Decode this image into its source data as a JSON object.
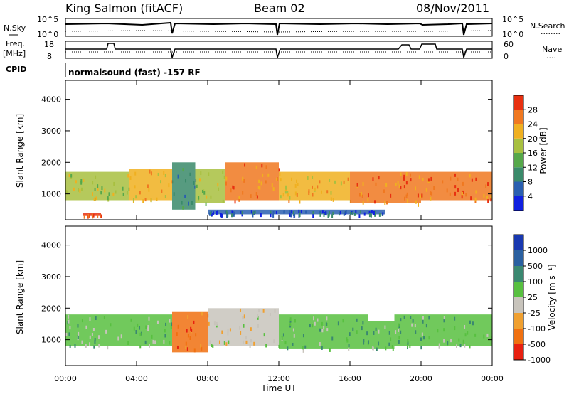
{
  "header": {
    "station": "King Salmon (fitACF)",
    "beam": "Beam 02",
    "date": "08/Nov/2011"
  },
  "strip_labels": {
    "nsky": "N.Sky",
    "nsearch": "N.Search",
    "nsearch_dots": "........",
    "freq": "Freq.",
    "freq_unit": "[MHz]",
    "nave": "Nave",
    "nave_dots": "....",
    "cpid": "CPID",
    "cpid_text": "normalsound (fast) -157 RF",
    "noise_ticks_left": [
      "10^5",
      "10^0"
    ],
    "noise_ticks_right": [
      "10^5",
      "10^0"
    ],
    "freq_ticks": [
      "18",
      "8"
    ],
    "nave_ticks": [
      "60",
      "0"
    ]
  },
  "axes": {
    "xlabel": "Time UT",
    "ylabel": "Slant Range [km]",
    "xticks": [
      "00:00",
      "04:00",
      "08:00",
      "12:00",
      "16:00",
      "20:00",
      "00:00"
    ],
    "yticks": [
      "1000",
      "2000",
      "3000",
      "4000"
    ]
  },
  "colorbars": {
    "power": {
      "label": "Power [dB]",
      "ticks": [
        "4",
        "8",
        "12",
        "16",
        "20",
        "24",
        "28"
      ],
      "colors": [
        "#1020e0",
        "#2a5fb0",
        "#3a8a6a",
        "#56a84a",
        "#a8c040",
        "#f0b020",
        "#f07820",
        "#e83010"
      ]
    },
    "velocity": {
      "label": "Velocity [m s⁻¹]",
      "ticks": [
        "1000",
        "500",
        "100",
        "25",
        "-25",
        "-100",
        "-500",
        "-1000"
      ],
      "colors": [
        "#1838b0",
        "#2a60a0",
        "#3a8870",
        "#58c040",
        "#c8c4bc",
        "#f0a030",
        "#f07010",
        "#e82010"
      ]
    }
  },
  "chart_data": [
    {
      "type": "heatmap",
      "title": "Power [dB]",
      "xlabel": "Time UT",
      "ylabel": "Slant Range [km]",
      "xlim": [
        0,
        24
      ],
      "ylim": [
        180,
        4600
      ],
      "clim": [
        0,
        30
      ],
      "bands": [
        {
          "t0": 0.0,
          "t1": 3.6,
          "r0": 800,
          "r1": 1700,
          "value": 16
        },
        {
          "t0": 3.6,
          "t1": 6.0,
          "r0": 800,
          "r1": 1800,
          "value": 22
        },
        {
          "t0": 6.0,
          "t1": 7.3,
          "r0": 500,
          "r1": 2000,
          "value": 9
        },
        {
          "t0": 7.3,
          "t1": 9.0,
          "r0": 700,
          "r1": 1800,
          "value": 18
        },
        {
          "t0": 9.0,
          "t1": 12.0,
          "r0": 800,
          "r1": 2000,
          "value": 24
        },
        {
          "t0": 12.0,
          "t1": 16.0,
          "r0": 800,
          "r1": 1700,
          "value": 20
        },
        {
          "t0": 16.0,
          "t1": 20.0,
          "r0": 700,
          "r1": 1700,
          "value": 26
        },
        {
          "t0": 20.0,
          "t1": 24.0,
          "r0": 800,
          "r1": 1700,
          "value": 24
        },
        {
          "t0": 1.0,
          "t1": 2.0,
          "r0": 300,
          "r1": 400,
          "value": 28
        },
        {
          "t0": 8.0,
          "t1": 18.0,
          "r0": 350,
          "r1": 500,
          "value": 6
        }
      ]
    },
    {
      "type": "heatmap",
      "title": "Velocity [m s⁻¹]",
      "xlabel": "Time UT",
      "ylabel": "Slant Range [km]",
      "xlim": [
        0,
        24
      ],
      "ylim": [
        180,
        4600
      ],
      "clim": [
        -1000,
        1000
      ],
      "bands": [
        {
          "t0": 0.0,
          "t1": 6.0,
          "r0": 800,
          "r1": 1800,
          "value": 0
        },
        {
          "t0": 6.0,
          "t1": 8.0,
          "r0": 600,
          "r1": 1900,
          "value": -600
        },
        {
          "t0": 8.0,
          "t1": 12.0,
          "r0": 800,
          "r1": 2000,
          "value": -200
        },
        {
          "t0": 12.0,
          "t1": 17.0,
          "r0": 700,
          "r1": 1800,
          "value": 200
        },
        {
          "t0": 17.0,
          "t1": 18.5,
          "r0": 700,
          "r1": 1600,
          "value": 60
        },
        {
          "t0": 18.5,
          "t1": 24.0,
          "r0": 800,
          "r1": 1800,
          "value": 0
        }
      ]
    }
  ]
}
